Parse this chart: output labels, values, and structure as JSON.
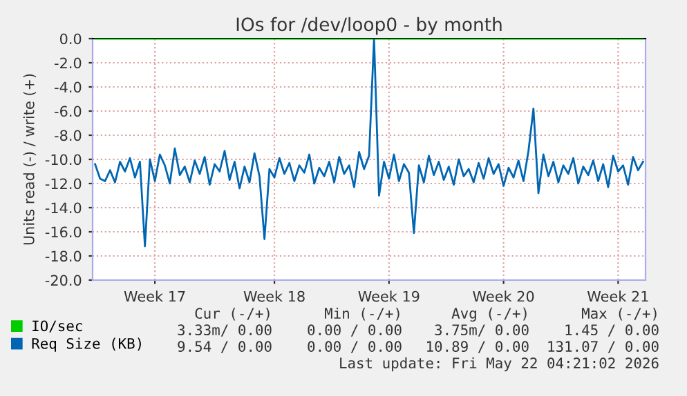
{
  "chart_data": {
    "type": "line",
    "title": "IOs for /dev/loop0 - by month",
    "ylabel": "Units read (-) / write (+)",
    "ylim": [
      -20,
      0
    ],
    "categories": [
      null,
      null,
      null,
      null,
      null,
      null,
      null,
      null,
      null,
      null,
      null,
      null,
      "Week 17",
      null,
      null,
      null,
      null,
      null,
      null,
      null,
      null,
      null,
      null,
      null,
      null,
      null,
      null,
      null,
      null,
      null,
      null,
      null,
      null,
      null,
      null,
      null,
      "Week 18",
      null,
      null,
      null,
      null,
      null,
      null,
      null,
      null,
      null,
      null,
      null,
      null,
      null,
      null,
      null,
      null,
      null,
      null,
      null,
      null,
      null,
      null,
      "Week 19",
      null,
      null,
      null,
      null,
      null,
      null,
      null,
      null,
      null,
      null,
      null,
      null,
      null,
      null,
      null,
      null,
      null,
      null,
      null,
      null,
      null,
      null,
      "Week 20",
      null,
      null,
      null,
      null,
      null,
      null,
      null,
      null,
      null,
      null,
      null,
      null,
      null,
      null,
      null,
      null,
      null,
      null,
      null,
      null,
      null,
      null,
      "Week 21",
      null,
      null,
      null,
      null,
      null
    ],
    "yticks": [
      {
        "value": 0,
        "label": "0.0"
      },
      {
        "value": -2,
        "label": "-2.0"
      },
      {
        "value": -4,
        "label": "-4.0"
      },
      {
        "value": -6,
        "label": "-6.0"
      },
      {
        "value": -8,
        "label": "-8.0"
      },
      {
        "value": -10,
        "label": "-10.0"
      },
      {
        "value": -12,
        "label": "-12.0"
      },
      {
        "value": -14,
        "label": "-14.0"
      },
      {
        "value": -16,
        "label": "-16.0"
      },
      {
        "value": -18,
        "label": "-18.0"
      },
      {
        "value": -20,
        "label": "-20.0"
      }
    ],
    "grid": true,
    "legend": "bottom left",
    "series": [
      {
        "name": "IO/sec",
        "color": "#00cc00",
        "values": [
          0,
          0,
          0,
          0,
          0,
          0,
          0,
          0,
          0,
          0,
          0,
          0,
          0,
          0,
          0,
          0,
          0,
          0,
          0,
          0,
          0,
          0,
          0,
          0,
          0,
          0,
          0,
          0,
          0,
          0,
          0,
          0,
          0,
          0,
          0,
          0,
          0,
          0,
          0,
          0,
          0,
          0,
          0,
          0,
          0,
          0,
          0,
          0,
          0,
          0,
          0,
          0,
          0,
          0,
          0,
          0,
          0,
          0,
          0,
          0,
          0,
          0,
          0,
          0,
          0,
          0,
          0,
          0,
          0,
          0,
          0,
          0,
          0,
          0,
          0,
          0,
          0,
          0,
          0,
          0,
          0,
          0,
          0,
          0,
          0,
          0,
          0,
          0,
          0,
          0,
          0,
          0,
          0,
          0,
          0,
          0,
          0,
          0,
          0,
          0,
          0,
          0,
          0,
          0,
          0,
          0,
          0,
          0,
          0,
          0,
          0
        ]
      },
      {
        "name": "Req Size (KB)",
        "color": "#0066b3",
        "values": [
          -10.4,
          -11.6,
          -11.8,
          -10.9,
          -11.9,
          -10.2,
          -11.0,
          -9.9,
          -11.5,
          -10.2,
          -17.2,
          -10.0,
          -11.8,
          -9.6,
          -10.5,
          -12.0,
          -9.1,
          -11.3,
          -10.6,
          -11.9,
          -10.1,
          -11.2,
          -9.8,
          -12.1,
          -10.4,
          -11.0,
          -9.3,
          -11.7,
          -10.2,
          -12.4,
          -10.6,
          -11.9,
          -9.5,
          -11.4,
          -16.6,
          -10.8,
          -11.5,
          -9.9,
          -11.2,
          -10.3,
          -11.8,
          -10.5,
          -11.1,
          -9.6,
          -12.0,
          -10.7,
          -11.4,
          -10.2,
          -11.9,
          -9.8,
          -11.2,
          -10.5,
          -12.3,
          -9.4,
          -10.8,
          -9.7,
          0.0,
          -13.0,
          -10.2,
          -11.6,
          -9.6,
          -11.8,
          -10.4,
          -11.1,
          -16.1,
          -10.5,
          -11.9,
          -9.7,
          -11.3,
          -10.2,
          -11.7,
          -10.6,
          -12.1,
          -10.0,
          -11.4,
          -10.8,
          -11.9,
          -10.3,
          -11.6,
          -9.9,
          -11.2,
          -10.4,
          -12.2,
          -10.7,
          -11.5,
          -10.1,
          -11.8,
          -9.3,
          -5.8,
          -12.8,
          -9.6,
          -11.4,
          -10.2,
          -11.9,
          -10.5,
          -11.2,
          -9.9,
          -12.0,
          -10.6,
          -11.3,
          -10.1,
          -11.8,
          -10.4,
          -12.3,
          -9.7,
          -11.0,
          -10.5,
          -12.1,
          -9.8,
          -10.9,
          -10.2
        ]
      }
    ],
    "annotations": [
      "Cur (-/+)",
      "Min (-/+)",
      "Avg (-/+)",
      "Max (-/+)",
      "3.33m/ 0.00",
      "0.00 / 0.00",
      "3.75m/ 0.00",
      "1.45 / 0.00",
      "9.54 / 0.00",
      "0.00 / 0.00",
      "10.89 / 0.00",
      "131.07 / 0.00",
      "Last update: Fri May 22 04:21:02 2026"
    ]
  }
}
